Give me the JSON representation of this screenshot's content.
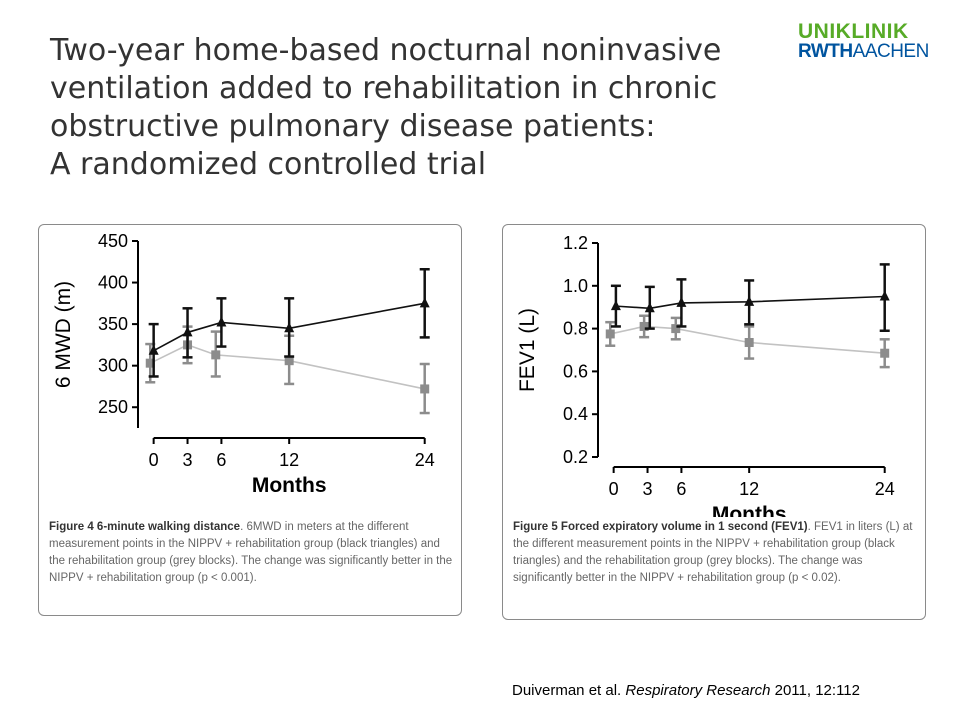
{
  "title_lines": [
    "Two-year home-based nocturnal noninvasive",
    "ventilation added to rehabilitation in chronic",
    "obstructive pulmonary disease patients:",
    "A randomized controlled trial"
  ],
  "logo": {
    "top": "UNIKLINIK",
    "bottom_bold": "RWTH",
    "bottom_light": "AACHEN"
  },
  "citation": {
    "authors": "Duiverman et al. ",
    "journal": "Respiratory Research",
    "details": " 2011, 12:112"
  },
  "colors": {
    "black_series": "#111111",
    "grey_series": "#8c8c8c",
    "grey_line": "#c2c2c2",
    "logo_green": "#57ab27",
    "logo_blue": "#00549f"
  },
  "chart_data": [
    {
      "type": "line",
      "xlabel": "Months",
      "ylabel": "6 MWD (m)",
      "x": [
        0,
        3,
        6,
        12,
        24
      ],
      "xticks": [
        0,
        3,
        6,
        12,
        24
      ],
      "ylim": [
        225,
        450
      ],
      "yticks": [
        250,
        300,
        350,
        400,
        450
      ],
      "series": [
        {
          "style": "black triangles",
          "x": [
            0,
            3,
            6,
            12,
            24
          ],
          "values": [
            318,
            340,
            352,
            345,
            375
          ],
          "err_low": [
            287,
            310,
            323,
            311,
            334
          ],
          "err_high": [
            350,
            369,
            381,
            381,
            416
          ]
        },
        {
          "style": "grey blocks",
          "x": [
            -0.3,
            3,
            5.5,
            12,
            24
          ],
          "values": [
            303,
            325,
            313,
            306,
            272
          ],
          "err_low": [
            280,
            303,
            287,
            278,
            243
          ],
          "err_high": [
            326,
            347,
            341,
            336,
            302
          ]
        }
      ]
    },
    {
      "type": "line",
      "xlabel": "Months",
      "ylabel": "FEV1 (L)",
      "x": [
        0,
        3,
        6,
        12,
        24
      ],
      "xticks": [
        0,
        3,
        6,
        12,
        24
      ],
      "ylim": [
        0.2,
        1.2
      ],
      "yticks": [
        0.2,
        0.4,
        0.6,
        0.8,
        1.0,
        1.2
      ],
      "series": [
        {
          "style": "black triangles",
          "x": [
            0.2,
            3.2,
            6,
            12,
            24
          ],
          "values": [
            0.905,
            0.895,
            0.92,
            0.925,
            0.95
          ],
          "err_low": [
            0.81,
            0.8,
            0.81,
            0.82,
            0.79
          ],
          "err_high": [
            1.0,
            0.995,
            1.03,
            1.025,
            1.1
          ]
        },
        {
          "style": "grey blocks",
          "x": [
            -0.3,
            2.7,
            5.5,
            12,
            24
          ],
          "values": [
            0.775,
            0.81,
            0.8,
            0.735,
            0.685
          ],
          "err_low": [
            0.72,
            0.76,
            0.75,
            0.66,
            0.62
          ],
          "err_high": [
            0.83,
            0.86,
            0.85,
            0.81,
            0.75
          ]
        }
      ]
    }
  ],
  "captions": [
    {
      "bold": "Figure 4 6-minute walking distance",
      "text": ". 6MWD in meters at the different measurement points in the NIPPV + rehabilitation group (black triangles) and the rehabilitation group (grey blocks). The change was significantly better in the NIPPV + rehabilitation group (p < 0.001)."
    },
    {
      "bold": "Figure 5 Forced expiratory volume in 1 second (FEV1)",
      "text": ". FEV1 in liters (L) at the different measurement points in the NIPPV + rehabilitation group (black triangles) and the rehabilitation group (grey blocks). The change was significantly better in the NIPPV + rehabilitation group (p < 0.02)."
    }
  ]
}
